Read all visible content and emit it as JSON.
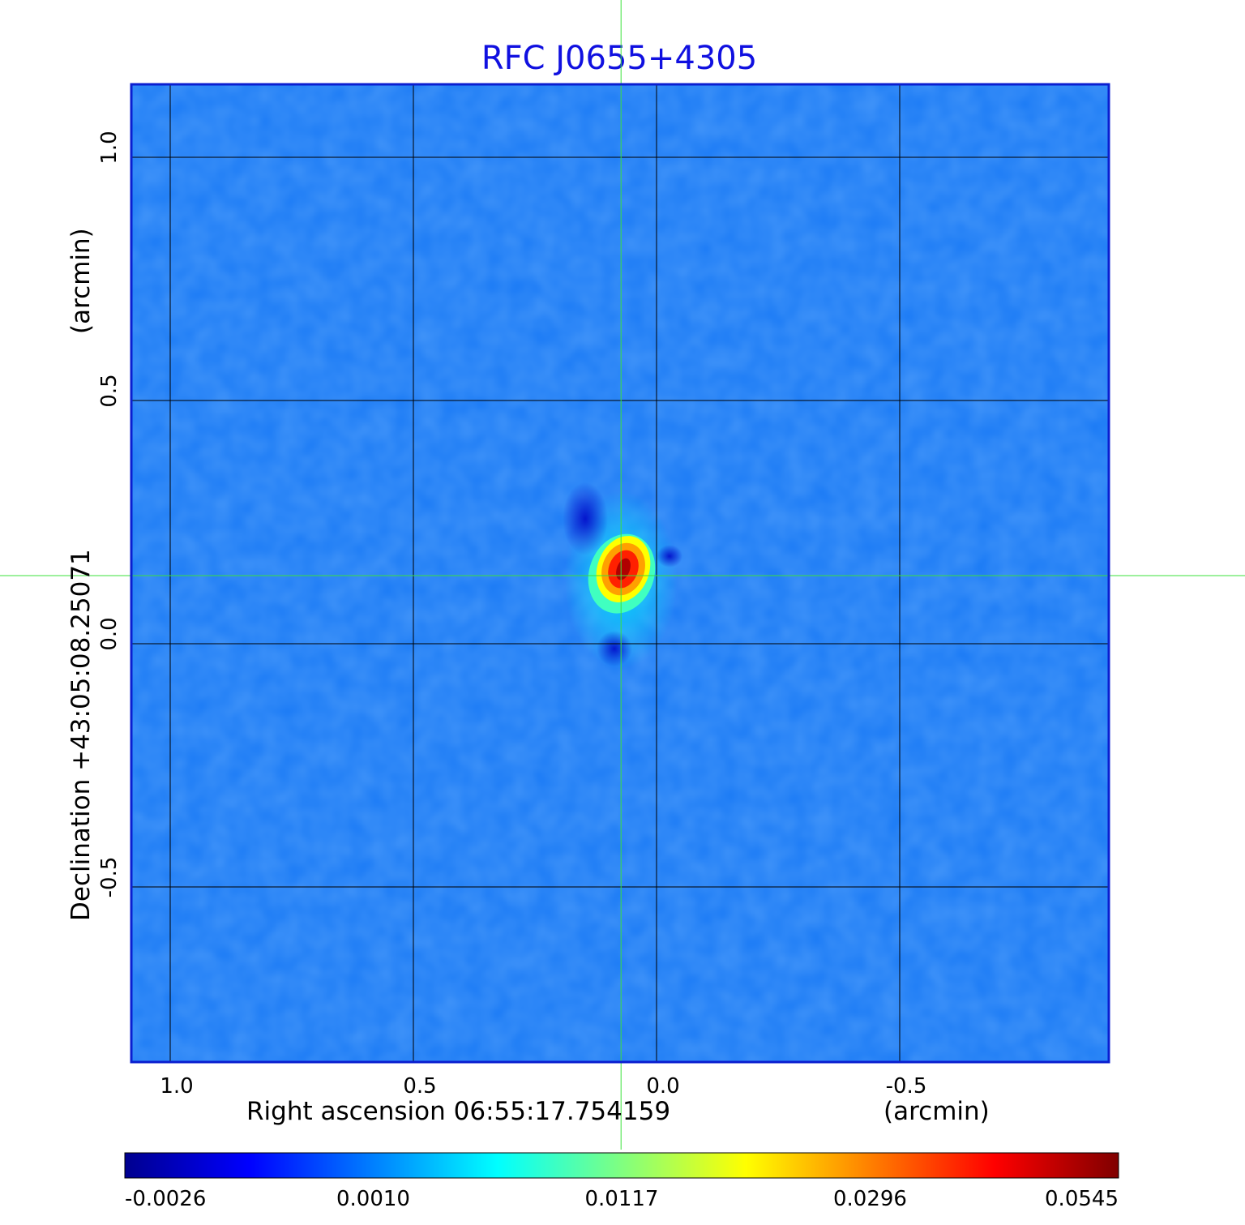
{
  "chart_data": {
    "type": "heatmap",
    "title": "RFC J0655+4305",
    "xlabel": "Right ascension  06:55:17.754159",
    "xunit": "(arcmin)",
    "ylabel": "Declination  +43:05:08.25071",
    "yunit": "(arcmin)",
    "xlim": [
      1.08,
      -0.93
    ],
    "ylim": [
      -0.86,
      1.15
    ],
    "x_ticks": [
      {
        "value": 1.0,
        "label": "1.0"
      },
      {
        "value": 0.5,
        "label": "0.5"
      },
      {
        "value": 0.0,
        "label": "0.0"
      },
      {
        "value": -0.5,
        "label": "-0.5"
      }
    ],
    "y_ticks": [
      {
        "value": 1.0,
        "label": "1.0"
      },
      {
        "value": 0.5,
        "label": "0.5"
      },
      {
        "value": 0.0,
        "label": "0.0"
      },
      {
        "value": -0.5,
        "label": "-0.5"
      }
    ],
    "grid": true,
    "crosshair": {
      "x": 0.073,
      "y": 0.14
    },
    "peak": {
      "x": 0.073,
      "y": 0.155,
      "value": 0.0545
    },
    "colorbar": {
      "ticks": [
        {
          "value": -0.0026,
          "label": "-0.0026"
        },
        {
          "value": 0.001,
          "label": "0.0010"
        },
        {
          "value": 0.0117,
          "label": "0.0117"
        },
        {
          "value": 0.0296,
          "label": "0.0296"
        },
        {
          "value": 0.0545,
          "label": "0.0545"
        }
      ],
      "colormap": "jet"
    },
    "colors": {
      "title": "#1010e0",
      "frame": "#0a1ed0",
      "crosshair": "#3be03b",
      "background_level": "#1a7af5"
    }
  }
}
